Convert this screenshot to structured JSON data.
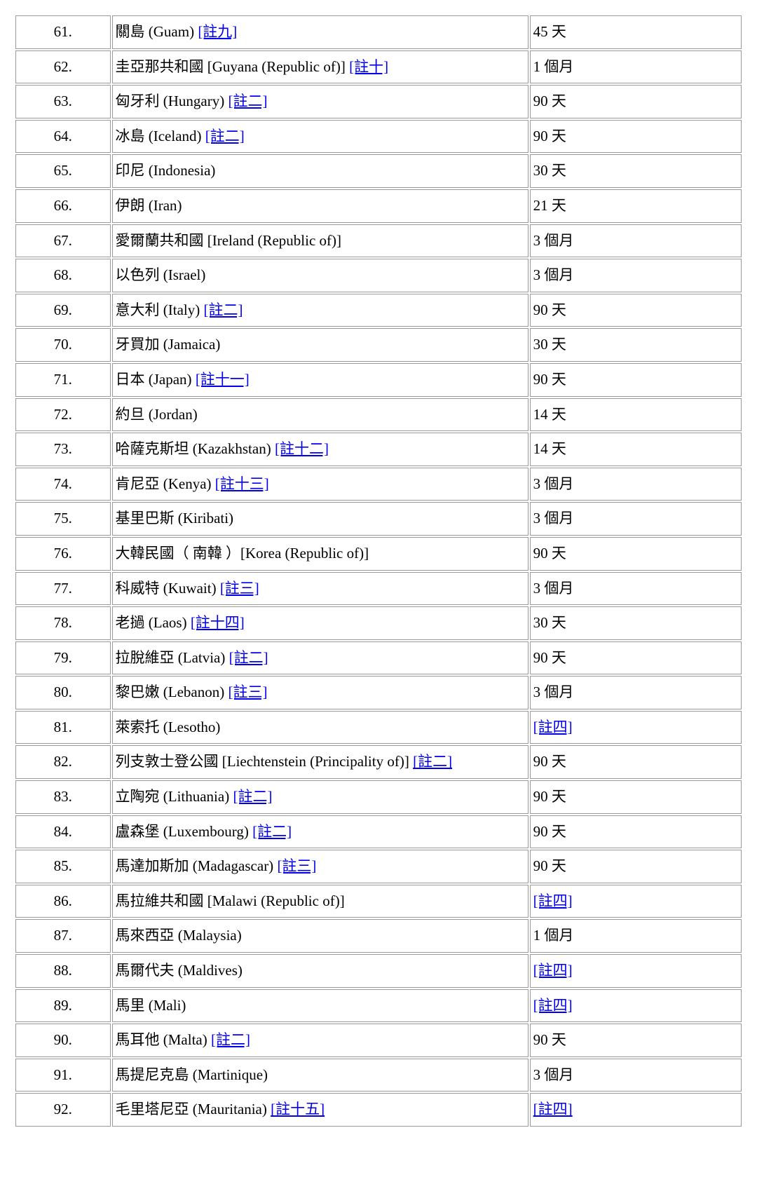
{
  "rows": [
    {
      "num": "61.",
      "name": "關島 (Guam) ",
      "note": "[註九]",
      "duration": "45 天"
    },
    {
      "num": "62.",
      "name": "圭亞那共和國 [Guyana (Republic of)] ",
      "note": "[註十]",
      "duration": "1 個月"
    },
    {
      "num": "63.",
      "name": "匈牙利 (Hungary) ",
      "note": "[註二]",
      "duration": "90 天"
    },
    {
      "num": "64.",
      "name": "冰島 (Iceland) ",
      "note": "[註二]",
      "duration": "90 天"
    },
    {
      "num": "65.",
      "name": "印尼 (Indonesia)",
      "note": "",
      "duration": "30 天"
    },
    {
      "num": "66.",
      "name": "伊朗 (Iran)",
      "note": "",
      "duration": "21 天"
    },
    {
      "num": "67.",
      "name": "愛爾蘭共和國 [Ireland (Republic of)]",
      "note": "",
      "duration": "3 個月"
    },
    {
      "num": "68.",
      "name": "以色列 (Israel)",
      "note": "",
      "duration": "3 個月"
    },
    {
      "num": "69.",
      "name": "意大利 (Italy) ",
      "note": "[註二]",
      "duration": "90 天"
    },
    {
      "num": "70.",
      "name": "牙買加 (Jamaica)",
      "note": "",
      "duration": "30 天"
    },
    {
      "num": "71.",
      "name": "日本 (Japan) ",
      "note": "[註十一]",
      "duration": "90 天"
    },
    {
      "num": "72.",
      "name": "約旦 (Jordan)",
      "note": "",
      "duration": "14 天"
    },
    {
      "num": "73.",
      "name": "哈薩克斯坦 (Kazakhstan) ",
      "note": "[註十二]",
      "duration": "14 天"
    },
    {
      "num": "74.",
      "name": "肯尼亞 (Kenya) ",
      "note": "[註十三]",
      "duration": "3 個月"
    },
    {
      "num": "75.",
      "name": "基里巴斯 (Kiribati)",
      "note": "",
      "duration": "3 個月"
    },
    {
      "num": "76.",
      "name": "大韓民國（ 南韓 ）[Korea (Republic of)]",
      "note": "",
      "duration": "90 天"
    },
    {
      "num": "77.",
      "name": "科威特 (Kuwait) ",
      "note": "[註三]",
      "duration": "3 個月"
    },
    {
      "num": "78.",
      "name": "老撾 (Laos) ",
      "note": "[註十四]",
      "duration": "30 天"
    },
    {
      "num": "79.",
      "name": "拉脫維亞 (Latvia) ",
      "note": "[註二]",
      "duration": "90 天"
    },
    {
      "num": "80.",
      "name": "黎巴嫩 (Lebanon) ",
      "note": "[註三]",
      "duration": "3 個月"
    },
    {
      "num": "81.",
      "name": "萊索托 (Lesotho)",
      "note": "",
      "duration": "",
      "duration_note": "[註四]"
    },
    {
      "num": "82.",
      "name": "列支敦士登公國  [Liechtenstein (Principality of)] ",
      "note": "[註二]",
      "duration": "90 天"
    },
    {
      "num": "83.",
      "name": "立陶宛 (Lithuania) ",
      "note": "[註二]",
      "duration": "90 天"
    },
    {
      "num": "84.",
      "name": "盧森堡 (Luxembourg) ",
      "note": "[註二]",
      "duration": "90 天"
    },
    {
      "num": "85.",
      "name": "馬達加斯加 (Madagascar) ",
      "note": "[註三]",
      "duration": "90 天"
    },
    {
      "num": "86.",
      "name": "馬拉維共和國 [Malawi (Republic of)]",
      "note": "",
      "duration": "",
      "duration_note": "[註四]"
    },
    {
      "num": "87.",
      "name": "馬來西亞 (Malaysia)",
      "note": "",
      "duration": "1 個月"
    },
    {
      "num": "88.",
      "name": "馬爾代夫 (Maldives)",
      "note": "",
      "duration": "",
      "duration_note": "[註四]"
    },
    {
      "num": "89.",
      "name": "馬里 (Mali)",
      "note": "",
      "duration": "",
      "duration_note": "[註四]"
    },
    {
      "num": "90.",
      "name": "馬耳他 (Malta) ",
      "note": "[註二]",
      "duration": "90 天"
    },
    {
      "num": "91.",
      "name": "馬提尼克島 (Martinique)",
      "note": "",
      "duration": "3 個月"
    },
    {
      "num": "92.",
      "name": "毛里塔尼亞 (Mauritania) ",
      "note": "[註十五]",
      "duration": "",
      "duration_note": "[註四]"
    }
  ]
}
